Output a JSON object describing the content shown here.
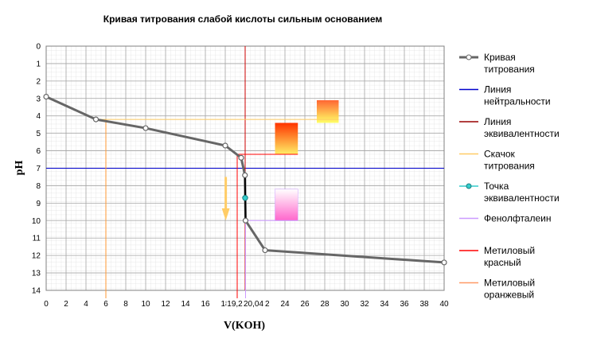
{
  "chart_data": {
    "type": "line",
    "title": "Кривая титрования слабой кислоты сильным основанием",
    "xlabel": "V(KOH)",
    "ylabel": "pH",
    "xlim": [
      0,
      40
    ],
    "ylim": [
      14,
      0
    ],
    "y_axis_inverted": true,
    "grid": true,
    "legend_position": "right",
    "x_ticks": [
      "0",
      "2",
      "4",
      "6",
      "8",
      "10",
      "12",
      "14",
      "16",
      "18",
      "20",
      "22",
      "24",
      "26",
      "28",
      "30",
      "32",
      "34",
      "36",
      "38",
      "40"
    ],
    "y_ticks": [
      "0",
      "1",
      "2",
      "3",
      "4",
      "5",
      "6",
      "7",
      "8",
      "9",
      "10",
      "11",
      "12",
      "13",
      "14"
    ],
    "series": [
      {
        "name": "Кривая титрования",
        "color": "#666666",
        "x": [
          0,
          5,
          10,
          18,
          19.6,
          19.98,
          20.04,
          22,
          40
        ],
        "y": [
          2.9,
          4.2,
          4.7,
          5.7,
          6.4,
          7.4,
          10.0,
          11.7,
          12.4
        ]
      },
      {
        "name": "Точка эквивалентности",
        "color": "#33cccc",
        "x": [
          20
        ],
        "y": [
          8.7
        ]
      }
    ],
    "reference_lines": [
      {
        "name": "Линия нейтральности",
        "color": "#0000cc",
        "orientation": "horizontal",
        "y": 7
      },
      {
        "name": "Линия эквивалентности",
        "color": "#cc0000",
        "orientation": "vertical",
        "x": 20
      }
    ],
    "annotations": [
      {
        "text": "6",
        "x": 6,
        "color": "#ff9933"
      },
      {
        "text": "19,2",
        "x": 19.2,
        "color": "#cc0000"
      },
      {
        "text": "20,04",
        "x": 20.04,
        "color": "#cc99ff"
      }
    ],
    "legend": [
      {
        "label": "Кривая титрования",
        "color": "#666666",
        "marker": true
      },
      {
        "label": "Линия нейтральности",
        "color": "#0000cc"
      },
      {
        "label": "Линия эквивалентности",
        "color": "#990000"
      },
      {
        "label": "Скачок титрования",
        "color": "#ffcc66"
      },
      {
        "label": "Точка эквивалентности",
        "color": "#33cccc",
        "marker": true
      },
      {
        "label": "Фенолфталеин",
        "color": "#cc99ff"
      },
      {
        "label": "Метиловый красный",
        "color": "#ff0000"
      },
      {
        "label": "Метиловый оранжевый",
        "color": "#ff9966"
      }
    ]
  }
}
